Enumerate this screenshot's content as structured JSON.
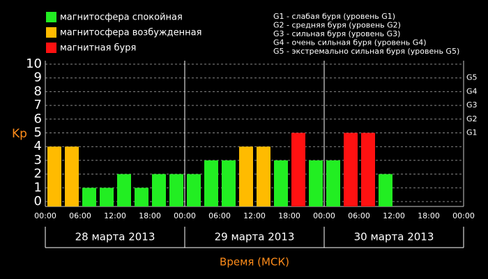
{
  "chart_data": {
    "type": "bar",
    "y_label": "Kp",
    "x_label": "Время (МСК)",
    "legend": [
      {
        "name": "магнитосфера спокойная",
        "color": "#22ee22"
      },
      {
        "name": "магнитосфера возбужденная",
        "color": "#ffbb00"
      },
      {
        "name": "магнитная буря",
        "color": "#ff1111"
      }
    ],
    "storm_legend": [
      "G1 - слабая буря (уровень G1)",
      "G2 - средняя буря (уровень G2)",
      "G3 - сильная буря (уровень G3)",
      "G4 - очень сильная буря (уровень G4)",
      "G5 - экстремально сильная буря (уровень G5)"
    ],
    "values": [
      4,
      4,
      1,
      1,
      2,
      1,
      2,
      2,
      2,
      3,
      3,
      4,
      4,
      3,
      5,
      3,
      3,
      5,
      5,
      2,
      null,
      null,
      null,
      null
    ],
    "colors": [
      "#ffbb00",
      "#ffbb00",
      "#22ee22",
      "#22ee22",
      "#22ee22",
      "#22ee22",
      "#22ee22",
      "#22ee22",
      "#22ee22",
      "#22ee22",
      "#22ee22",
      "#ffbb00",
      "#ffbb00",
      "#22ee22",
      "#ff1111",
      "#22ee22",
      "#22ee22",
      "#ff1111",
      "#ff1111",
      "#22ee22",
      null,
      null,
      null,
      null
    ],
    "xtick_labels": [
      "00:00",
      "06:00",
      "12:00",
      "18:00",
      "00:00",
      "06:00",
      "12:00",
      "18:00",
      "00:00",
      "06:00",
      "12:00",
      "18:00",
      "00:00"
    ],
    "days": [
      "28 марта 2013",
      "29 марта 2013",
      "30 марта 2013"
    ],
    "ylim": [
      0,
      10
    ],
    "yticks": [
      0,
      1,
      2,
      3,
      4,
      5,
      6,
      7,
      8,
      9,
      10
    ],
    "g_levels": [
      {
        "value": 5,
        "label": "G1"
      },
      {
        "value": 6,
        "label": "G2"
      },
      {
        "value": 7,
        "label": "G3"
      },
      {
        "value": 8,
        "label": "G4"
      },
      {
        "value": 9,
        "label": "G5"
      }
    ]
  }
}
